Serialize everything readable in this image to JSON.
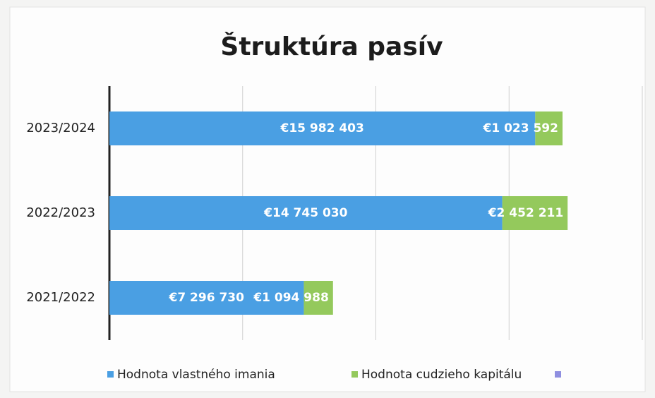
{
  "chart_data": {
    "type": "stacked_barh",
    "title": "Štruktúra pasív",
    "categories": [
      "2023/2024",
      "2022/2023",
      "2021/2022"
    ],
    "series": [
      {
        "name": "Hodnota vlastného imania",
        "color": "#4a9fe3",
        "values": [
          15982403,
          14745030,
          7296730
        ],
        "value_labels": [
          "€15 982 403",
          "€14 745 030",
          "€7 296 730"
        ]
      },
      {
        "name": "Hodnota cudzieho kapitálu",
        "color": "#94c95c",
        "values": [
          1023592,
          2452211,
          1094988
        ],
        "value_labels": [
          "€1 023 592",
          "€2 452 211",
          "€1 094 988"
        ]
      }
    ],
    "xlim": [
      0,
      20000000
    ],
    "xticks": [
      0,
      5000000,
      10000000,
      15000000,
      20000000
    ],
    "grid": true
  }
}
